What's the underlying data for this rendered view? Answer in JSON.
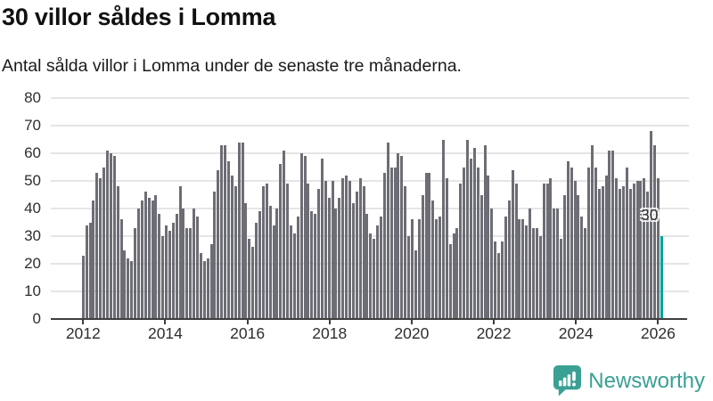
{
  "header": {
    "title": "30 villor såldes i Lomma",
    "subtitle": "Antal sålda villor i Lomma under de senaste tre månaderna."
  },
  "chart_data": {
    "type": "bar",
    "title": "30 villor såldes i Lomma",
    "subtitle": "Antal sålda villor i Lomma under de senaste tre månaderna.",
    "xlabel": "",
    "ylabel": "",
    "ylim": [
      0,
      80
    ],
    "yticks": [
      0,
      10,
      20,
      30,
      40,
      50,
      60,
      70,
      80
    ],
    "xticks": [
      "2012",
      "2014",
      "2016",
      "2018",
      "2020",
      "2022",
      "2024",
      "2026"
    ],
    "grid": true,
    "legend": "none",
    "frequency": "monthly",
    "x_start": "2012",
    "x_end": "2026",
    "values": [
      23,
      34,
      35,
      43,
      53,
      51,
      55,
      61,
      60,
      59,
      48,
      36,
      25,
      22,
      21,
      33,
      40,
      43,
      46,
      44,
      43,
      45,
      38,
      30,
      34,
      32,
      35,
      38,
      48,
      40,
      33,
      33,
      40,
      37,
      24,
      21,
      22,
      27,
      46,
      54,
      63,
      63,
      57,
      52,
      48,
      64,
      64,
      42,
      29,
      26,
      35,
      39,
      48,
      49,
      41,
      34,
      40,
      56,
      61,
      49,
      34,
      31,
      37,
      60,
      59,
      49,
      39,
      38,
      47,
      58,
      50,
      44,
      50,
      40,
      44,
      51,
      52,
      50,
      42,
      46,
      51,
      48,
      38,
      31,
      29,
      34,
      37,
      53,
      64,
      55,
      55,
      60,
      59,
      48,
      30,
      36,
      25,
      36,
      45,
      53,
      53,
      43,
      36,
      37,
      65,
      51,
      27,
      31,
      33,
      49,
      55,
      65,
      58,
      62,
      55,
      45,
      63,
      52,
      40,
      28,
      24,
      28,
      37,
      43,
      54,
      49,
      36,
      36,
      34,
      40,
      33,
      33,
      30,
      49,
      49,
      51,
      40,
      40,
      29,
      45,
      57,
      55,
      50,
      45,
      37,
      33,
      55,
      63,
      55,
      47,
      48,
      52,
      61,
      61,
      51,
      47,
      48,
      55,
      47,
      49,
      50,
      50,
      51,
      46,
      68,
      63,
      51,
      30
    ],
    "highlight_last": true,
    "last_value_label": "30",
    "colors": {
      "bar": "#6d6d75",
      "highlight": "#00a2a1",
      "gridline": "#e5e5e5",
      "axis": "#3f3f3f"
    }
  },
  "footer": {
    "brand": "Newsworthy",
    "brand_color": "#3aa094"
  }
}
